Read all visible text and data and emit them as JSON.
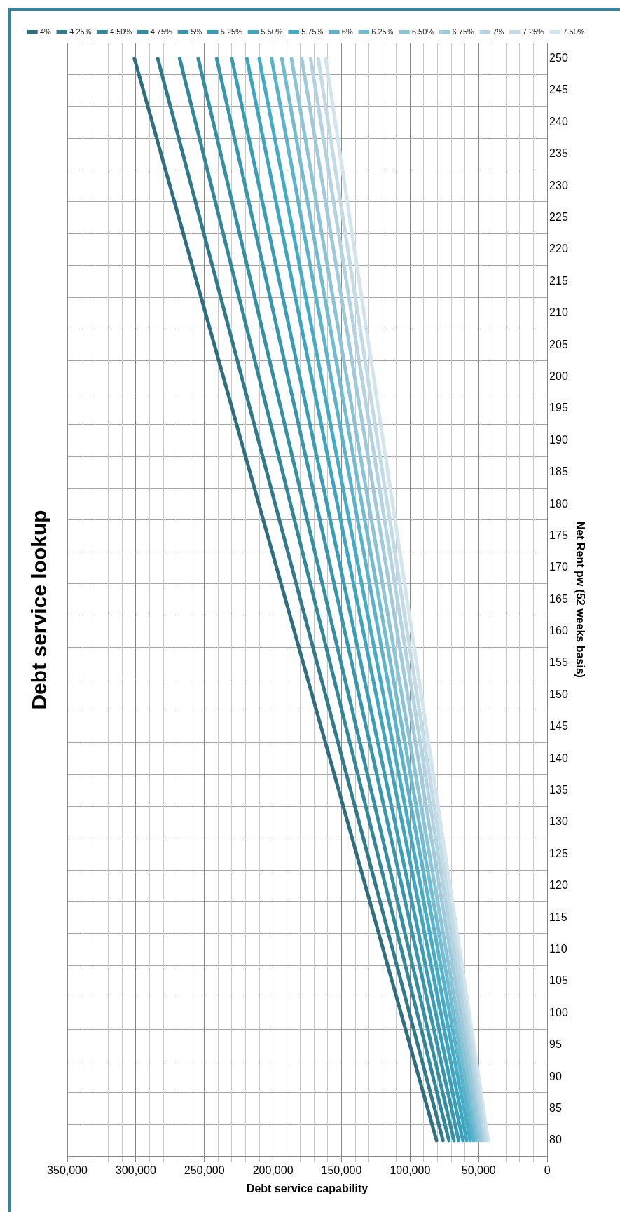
{
  "chart_data": {
    "type": "line",
    "title": "Debt service lookup",
    "xlabel": "Debt service capability",
    "ylabel": "Net Rent pw (52 weeks basis)",
    "series": [
      {
        "name": "4%",
        "color": "#2e6e7e",
        "x": [
          80700,
          301000
        ],
        "values": [
          80,
          250
        ]
      },
      {
        "name": "4.25%",
        "color": "#307a8c",
        "x": [
          76000,
          284000
        ],
        "values": [
          80,
          250
        ]
      },
      {
        "name": "4.50%",
        "color": "#33879a",
        "x": [
          71700,
          268000
        ],
        "values": [
          80,
          250
        ]
      },
      {
        "name": "4.75%",
        "color": "#358fa3",
        "x": [
          68000,
          254500
        ],
        "values": [
          80,
          250
        ]
      },
      {
        "name": "5%",
        "color": "#3796ad",
        "x": [
          64600,
          241000
        ],
        "values": [
          80,
          250
        ]
      },
      {
        "name": "5.25%",
        "color": "#3a9db6",
        "x": [
          61500,
          230000
        ],
        "values": [
          80,
          250
        ]
      },
      {
        "name": "5.50%",
        "color": "#3fa5be",
        "x": [
          58700,
          219000
        ],
        "values": [
          80,
          250
        ]
      },
      {
        "name": "5.75%",
        "color": "#45acc6",
        "x": [
          56100,
          210000
        ],
        "values": [
          80,
          250
        ]
      },
      {
        "name": "6%",
        "color": "#5ab3cb",
        "x": [
          53800,
          201000
        ],
        "values": [
          80,
          250
        ]
      },
      {
        "name": "6.25%",
        "color": "#72bcd0",
        "x": [
          51700,
          193500
        ],
        "values": [
          80,
          250
        ]
      },
      {
        "name": "6.50%",
        "color": "#8ac4d6",
        "x": [
          49700,
          186500
        ],
        "values": [
          80,
          250
        ]
      },
      {
        "name": "6.75%",
        "color": "#9fcadb",
        "x": [
          47800,
          179000
        ],
        "values": [
          80,
          250
        ]
      },
      {
        "name": "7%",
        "color": "#b2d3df",
        "x": [
          46100,
          172500
        ],
        "values": [
          80,
          250
        ]
      },
      {
        "name": "7.25%",
        "color": "#c2dbe5",
        "x": [
          44500,
          167000
        ],
        "values": [
          80,
          250
        ]
      },
      {
        "name": "7.50%",
        "color": "#d3e5ec",
        "x": [
          43000,
          161500
        ],
        "values": [
          80,
          250
        ]
      }
    ],
    "ylim": [
      77.5,
      252.5
    ],
    "yticks": [
      {
        "value": 77.5,
        "label": null
      },
      80,
      {
        "value": 82.5,
        "label": null
      },
      85,
      {
        "value": 87.5,
        "label": null
      },
      90,
      {
        "value": 92.5,
        "label": null
      },
      95,
      {
        "value": 97.5,
        "label": null
      },
      100,
      {
        "value": 102.5,
        "label": null
      },
      105,
      {
        "value": 107.5,
        "label": null
      },
      110,
      {
        "value": 112.5,
        "label": null
      },
      115,
      {
        "value": 117.5,
        "label": null
      },
      120,
      {
        "value": 122.5,
        "label": null
      },
      125,
      {
        "value": 127.5,
        "label": null
      },
      130,
      {
        "value": 132.5,
        "label": null
      },
      135,
      {
        "value": 137.5,
        "label": null
      },
      140,
      {
        "value": 142.5,
        "label": null
      },
      145,
      {
        "value": 147.5,
        "label": null
      },
      150,
      {
        "value": 152.5,
        "label": null
      },
      155,
      {
        "value": 157.5,
        "label": null
      },
      160,
      {
        "value": 162.5,
        "label": null
      },
      165,
      {
        "value": 167.5,
        "label": null
      },
      170,
      {
        "value": 172.5,
        "label": null
      },
      175,
      {
        "value": 177.5,
        "label": null
      },
      180,
      {
        "value": 182.5,
        "label": null
      },
      185,
      {
        "value": 187.5,
        "label": null
      },
      190,
      {
        "value": 192.5,
        "label": null
      },
      195,
      {
        "value": 197.5,
        "label": null
      },
      200,
      {
        "value": 202.5,
        "label": null
      },
      205,
      {
        "value": 207.5,
        "label": null
      },
      210,
      {
        "value": 212.5,
        "label": null
      },
      215,
      {
        "value": 217.5,
        "label": null
      },
      220,
      {
        "value": 222.5,
        "label": null
      },
      225,
      {
        "value": 227.5,
        "label": null
      },
      230,
      {
        "value": 232.5,
        "label": null
      },
      235,
      {
        "value": 237.5,
        "label": null
      },
      240,
      {
        "value": 242.5,
        "label": null
      },
      245,
      {
        "value": 247.5,
        "label": null
      },
      250,
      {
        "value": 252.5,
        "label": null
      }
    ],
    "xlim": [
      350000,
      0
    ],
    "xticks": [
      {
        "value": 0,
        "label": "0"
      },
      {
        "value": 10000,
        "label": null
      },
      {
        "value": 20000,
        "label": null
      },
      {
        "value": 30000,
        "label": null
      },
      {
        "value": 40000,
        "label": null
      },
      {
        "value": 50000,
        "label": "50,000"
      },
      {
        "value": 60000,
        "label": null
      },
      {
        "value": 70000,
        "label": null
      },
      {
        "value": 80000,
        "label": null
      },
      {
        "value": 90000,
        "label": null
      },
      {
        "value": 100000,
        "label": "100,000"
      },
      {
        "value": 110000,
        "label": null
      },
      {
        "value": 120000,
        "label": null
      },
      {
        "value": 130000,
        "label": null
      },
      {
        "value": 140000,
        "label": null
      },
      {
        "value": 150000,
        "label": "150,000"
      },
      {
        "value": 160000,
        "label": null
      },
      {
        "value": 170000,
        "label": null
      },
      {
        "value": 180000,
        "label": null
      },
      {
        "value": 190000,
        "label": null
      },
      {
        "value": 200000,
        "label": "200,000"
      },
      {
        "value": 210000,
        "label": null
      },
      {
        "value": 220000,
        "label": null
      },
      {
        "value": 230000,
        "label": null
      },
      {
        "value": 240000,
        "label": null
      },
      {
        "value": 250000,
        "label": "250,000"
      },
      {
        "value": 260000,
        "label": null
      },
      {
        "value": 270000,
        "label": null
      },
      {
        "value": 280000,
        "label": null
      },
      {
        "value": 290000,
        "label": null
      },
      {
        "value": 300000,
        "label": "300,000"
      },
      {
        "value": 310000,
        "label": null
      },
      {
        "value": 320000,
        "label": null
      },
      {
        "value": 330000,
        "label": null
      },
      {
        "value": 340000,
        "label": null
      },
      {
        "value": 350000,
        "label": "350,000"
      }
    ],
    "grid": true,
    "legend": "top",
    "marker": "none",
    "line_style": "solid"
  }
}
